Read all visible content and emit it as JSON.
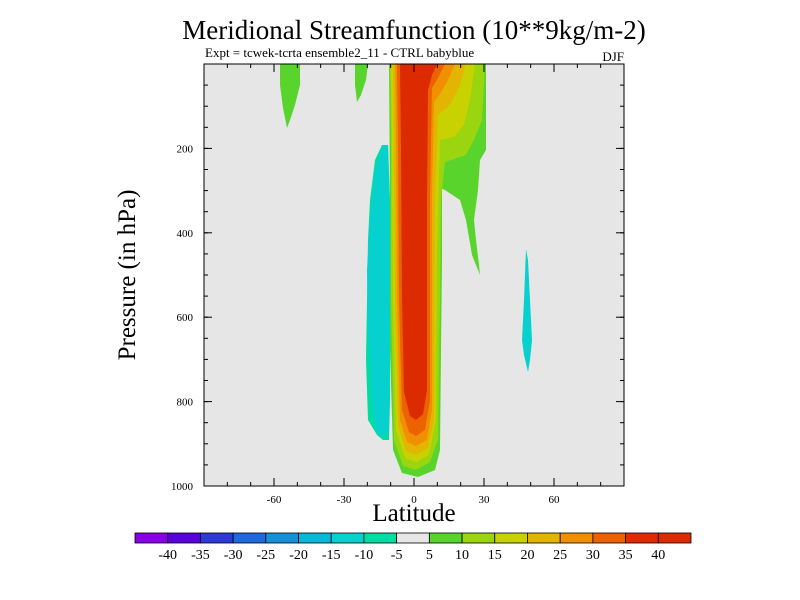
{
  "chart_data": {
    "type": "contour",
    "title": "Meridional Streamfunction (10**9kg/m-2)",
    "subtitle": "Expt = tcwek-tcrta ensemble2_11 - CTRL babyblue",
    "season": "DJF",
    "xlabel": "Latitude",
    "ylabel": "Pressure (in hPa)",
    "xlim": [
      -90,
      90
    ],
    "ylim": [
      1000,
      0
    ],
    "xticks": [
      -60,
      -30,
      0,
      30,
      60
    ],
    "yticks": [
      200,
      400,
      600,
      800,
      1000
    ],
    "colorbar": {
      "labels": [
        "-40",
        "-35",
        "-30",
        "-25",
        "-20",
        "-15",
        "-10",
        "-5",
        "5",
        "10",
        "15",
        "20",
        "25",
        "30",
        "35",
        "40"
      ],
      "colors": [
        "#8a00e6",
        "#5a00d8",
        "#2d3ad6",
        "#1f68dd",
        "#1691d8",
        "#09b7d8",
        "#06d1cf",
        "#00dda3",
        "#e6e6e6",
        "#58d42d",
        "#9ad50f",
        "#c7d200",
        "#e4b500",
        "#f09000",
        "#ec6200",
        "#e02a00",
        "#dc2b00"
      ]
    },
    "features": [
      {
        "name": "central-positive-cell",
        "level": "40",
        "lat_range": [
          -5,
          7
        ],
        "pressure_range": [
          0,
          990
        ]
      },
      {
        "name": "southern-negative-cell",
        "level": "-10",
        "lat_range": [
          -20,
          -8
        ],
        "pressure_range": [
          190,
          890
        ]
      },
      {
        "name": "northern-positive-flank",
        "level": "5",
        "lat_range": [
          10,
          28
        ],
        "pressure_range": [
          0,
          560
        ]
      },
      {
        "name": "nh-negative-blob",
        "level": "-10",
        "lat_range": [
          45,
          49
        ],
        "pressure_range": [
          430,
          740
        ]
      },
      {
        "name": "sh-upper-blob-1",
        "level": "5",
        "lat_range": [
          -56,
          -49
        ],
        "pressure_range": [
          0,
          190
        ]
      },
      {
        "name": "sh-upper-blob-2",
        "level": "5",
        "lat_range": [
          -24,
          -18
        ],
        "pressure_range": [
          0,
          110
        ]
      }
    ]
  }
}
